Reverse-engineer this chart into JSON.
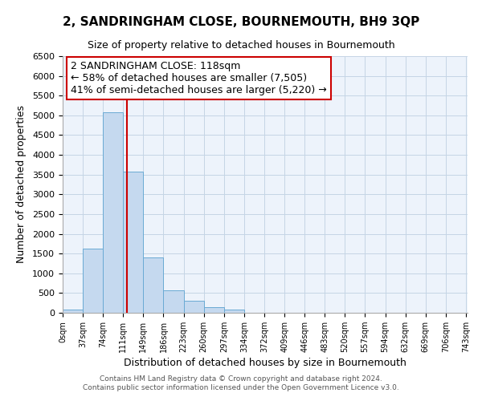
{
  "title": "2, SANDRINGHAM CLOSE, BOURNEMOUTH, BH9 3QP",
  "subtitle": "Size of property relative to detached houses in Bournemouth",
  "xlabel": "Distribution of detached houses by size in Bournemouth",
  "ylabel": "Number of detached properties",
  "bin_edges": [
    0,
    37,
    74,
    111,
    148,
    185,
    222,
    259,
    296,
    333,
    370,
    407,
    444,
    481,
    518,
    555,
    592,
    629,
    666,
    703,
    740
  ],
  "bin_labels": [
    "0sqm",
    "37sqm",
    "74sqm",
    "111sqm",
    "149sqm",
    "186sqm",
    "223sqm",
    "260sqm",
    "297sqm",
    "334sqm",
    "372sqm",
    "409sqm",
    "446sqm",
    "483sqm",
    "520sqm",
    "557sqm",
    "594sqm",
    "632sqm",
    "669sqm",
    "706sqm",
    "743sqm"
  ],
  "counts": [
    75,
    1625,
    5075,
    3575,
    1400,
    575,
    300,
    150,
    75,
    0,
    0,
    0,
    0,
    0,
    0,
    0,
    0,
    0,
    0,
    0
  ],
  "bar_color": "#c5d9ef",
  "bar_edge_color": "#6aaad4",
  "property_line_x": 118,
  "property_line_color": "#cc0000",
  "ylim": [
    0,
    6500
  ],
  "yticks": [
    0,
    500,
    1000,
    1500,
    2000,
    2500,
    3000,
    3500,
    4000,
    4500,
    5000,
    5500,
    6000,
    6500
  ],
  "annotation_title": "2 SANDRINGHAM CLOSE: 118sqm",
  "annotation_line1": "← 58% of detached houses are smaller (7,505)",
  "annotation_line2": "41% of semi-detached houses are larger (5,220) →",
  "annotation_box_color": "#ffffff",
  "annotation_box_edge_color": "#cc0000",
  "footer_line1": "Contains HM Land Registry data © Crown copyright and database right 2024.",
  "footer_line2": "Contains public sector information licensed under the Open Government Licence v3.0.",
  "background_color": "#ffffff",
  "plot_bg_color": "#edf3fb",
  "grid_color": "#c5d5e5"
}
